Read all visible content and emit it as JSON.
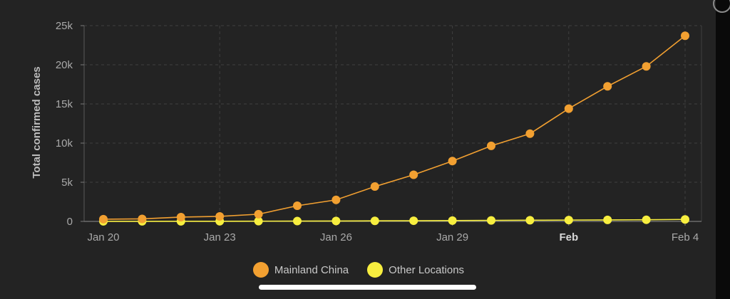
{
  "chart_data": {
    "type": "line",
    "ylabel": "Total confirmed cases",
    "ylim": [
      0,
      25000
    ],
    "y_ticks": [
      0,
      5000,
      10000,
      15000,
      20000,
      25000
    ],
    "y_tick_labels": [
      "0",
      "5k",
      "10k",
      "15k",
      "20k",
      "25k"
    ],
    "x_ticks": [
      "2020-01-20",
      "2020-01-23",
      "2020-01-26",
      "2020-01-29",
      "2020-02-01",
      "2020-02-04"
    ],
    "x_tick_labels": [
      "Jan 20",
      "Jan 23",
      "Jan 26",
      "Jan 29",
      "Feb",
      "Feb 4"
    ],
    "x_tick_bold": [
      false,
      false,
      false,
      false,
      true,
      false
    ],
    "xlim": [
      "2020-01-20",
      "2020-02-04"
    ],
    "grid": true,
    "legend_position": "bottom",
    "x": [
      "2020-01-20",
      "2020-01-21",
      "2020-01-22",
      "2020-01-23",
      "2020-01-24",
      "2020-01-25",
      "2020-01-26",
      "2020-01-27",
      "2020-01-28",
      "2020-01-29",
      "2020-01-30",
      "2020-01-31",
      "2020-02-01",
      "2020-02-02",
      "2020-02-03",
      "2020-02-04"
    ],
    "series": [
      {
        "name": "Mainland China",
        "color": "#f2a031",
        "values": [
          280,
          320,
          550,
          640,
          920,
          2000,
          2750,
          4450,
          5950,
          7700,
          9650,
          11200,
          14400,
          17250,
          19800,
          23700
        ]
      },
      {
        "name": "Other Locations",
        "color": "#f7ee3f",
        "values": [
          10,
          10,
          15,
          20,
          30,
          40,
          55,
          70,
          85,
          105,
          130,
          150,
          170,
          190,
          210,
          250
        ]
      }
    ]
  },
  "colors": {
    "background": "#232323",
    "grid": "#3f3f3f",
    "axis_text": "#a9a9a9",
    "axis_title": "#bdbdbd"
  }
}
